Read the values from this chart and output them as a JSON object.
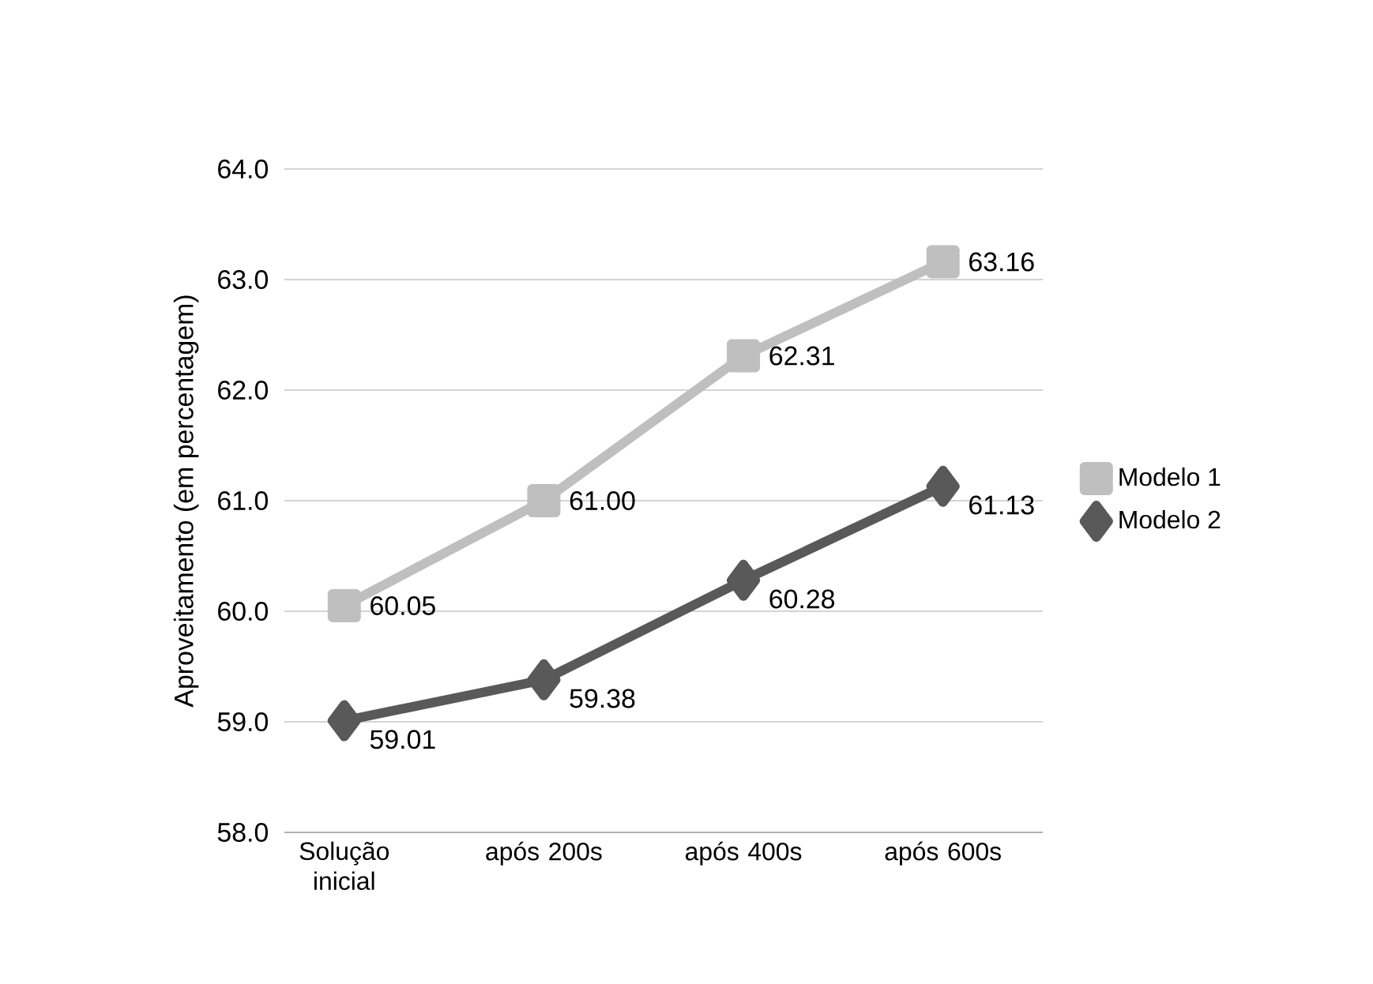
{
  "chart_data": {
    "type": "line",
    "ylabel": "Aproveitamento (em percentagem)",
    "categories": [
      "Solução inicial",
      "após 200s",
      "após 400s",
      "após 600s"
    ],
    "series": [
      {
        "name": "Modelo 1",
        "color": "#bfbfbf",
        "marker": "square",
        "values": [
          60.05,
          61.0,
          62.31,
          63.16
        ],
        "value_labels": [
          "60.05",
          "61.00",
          "62.31",
          "63.16"
        ]
      },
      {
        "name": "Modelo 2",
        "color": "#595959",
        "marker": "diamond",
        "values": [
          59.01,
          59.38,
          60.28,
          61.13
        ],
        "value_labels": [
          "59.01",
          "59.38",
          "60.28",
          "61.13"
        ]
      }
    ],
    "ylim": [
      58,
      64
    ],
    "yticks": [
      {
        "value": 58,
        "label": "58.0"
      },
      {
        "value": 59,
        "label": "59.0"
      },
      {
        "value": 60,
        "label": "60.0"
      },
      {
        "value": 61,
        "label": "61.0"
      },
      {
        "value": 62,
        "label": "62.0"
      },
      {
        "value": 63,
        "label": "63.0"
      },
      {
        "value": 64,
        "label": "64.0"
      }
    ],
    "grid": "y",
    "legend": "right"
  }
}
